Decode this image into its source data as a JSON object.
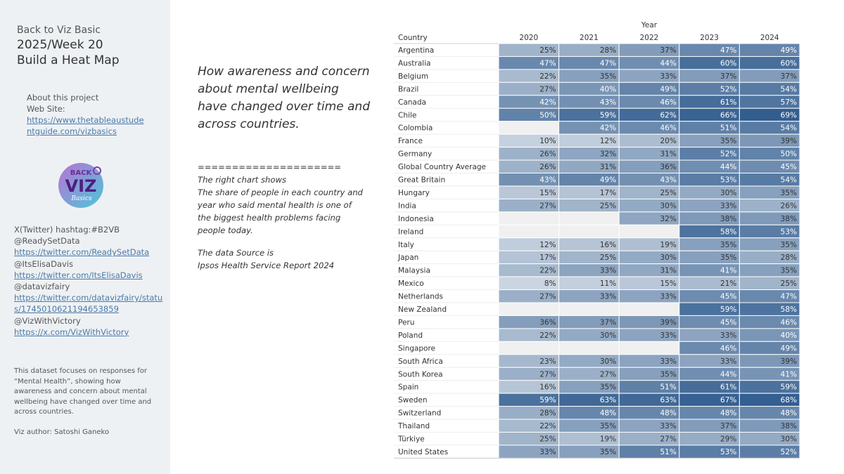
{
  "sidebar": {
    "header_line1": "Back to Viz Basic",
    "header_line2": "2025/Week 20",
    "header_line3": "Build a Heat Map",
    "about_label": "About this project",
    "website_label": "Web Site:",
    "website_url": "https://www.thetableaustudentguide.com/vizbasics",
    "logo_text_top": "BACK",
    "logo_text_main": "VIZ",
    "logo_text_bottom": "Basics",
    "hashtag": "X(Twitter) hashtag:#B2VB",
    "contacts": [
      {
        "handle": "@ReadySetData",
        "url": "https://twitter.com/ReadySetData"
      },
      {
        "handle": "@ItsElisaDavis",
        "url": "https://twitter.com/ItsElisaDavis"
      },
      {
        "handle": "@datavizfairy",
        "url": "https://twitter.com/datavizfairy/status/1745010621194653859"
      },
      {
        "handle": "@VizWithVictory",
        "url": "https://x.com/VizWithVictory"
      }
    ],
    "description": "This dataset focuses on responses for “Mental Health”, showing how awareness and concern about mental wellbeing have changed over time and across countries.",
    "author": "Viz author: Satoshi Ganeko"
  },
  "headline": "How awareness and concern about mental wellbeing have changed over time and across countries.",
  "notes": {
    "separator": "=====================",
    "line1": "The right chart shows",
    "line2": "The share of people in each country and year who said mental health is one of the biggest health problems facing people today.",
    "line3": "The data Source is",
    "line4": "Ipsos Health Service Report 2024"
  },
  "colors": {
    "heat_low": "#d2dbe5",
    "heat_high": "#2f5b8e",
    "empty_cell": "#f0f0f0",
    "sidebar_bg": "#eef1f4",
    "link": "#4a7aa8"
  },
  "chart_data": {
    "type": "heatmap",
    "column_group_label": "Year",
    "row_header": "Country",
    "columns": [
      "2020",
      "2021",
      "2022",
      "2023",
      "2024"
    ],
    "rows": [
      {
        "country": "Argentina",
        "values": [
          25,
          28,
          37,
          47,
          49
        ]
      },
      {
        "country": "Australia",
        "values": [
          47,
          47,
          44,
          60,
          60
        ]
      },
      {
        "country": "Belgium",
        "values": [
          22,
          35,
          33,
          37,
          37
        ]
      },
      {
        "country": "Brazil",
        "values": [
          27,
          40,
          49,
          52,
          54
        ]
      },
      {
        "country": "Canada",
        "values": [
          42,
          43,
          46,
          61,
          57
        ]
      },
      {
        "country": "Chile",
        "values": [
          50,
          59,
          62,
          66,
          69
        ]
      },
      {
        "country": "Colombia",
        "values": [
          null,
          42,
          46,
          51,
          54
        ]
      },
      {
        "country": "France",
        "values": [
          10,
          12,
          20,
          35,
          39
        ]
      },
      {
        "country": "Germany",
        "values": [
          26,
          32,
          31,
          52,
          50
        ]
      },
      {
        "country": "Global Country Average",
        "values": [
          26,
          31,
          36,
          44,
          45
        ]
      },
      {
        "country": "Great Britain",
        "values": [
          43,
          49,
          43,
          53,
          54
        ]
      },
      {
        "country": "Hungary",
        "values": [
          15,
          17,
          25,
          30,
          35
        ]
      },
      {
        "country": "India",
        "values": [
          27,
          25,
          30,
          33,
          26
        ]
      },
      {
        "country": "Indonesia",
        "values": [
          null,
          null,
          32,
          38,
          38
        ]
      },
      {
        "country": "Ireland",
        "values": [
          null,
          null,
          null,
          58,
          53
        ]
      },
      {
        "country": "Italy",
        "values": [
          12,
          16,
          19,
          35,
          35
        ]
      },
      {
        "country": "Japan",
        "values": [
          17,
          25,
          30,
          35,
          28
        ]
      },
      {
        "country": "Malaysia",
        "values": [
          22,
          33,
          31,
          41,
          35
        ]
      },
      {
        "country": "Mexico",
        "values": [
          8,
          11,
          15,
          21,
          25
        ]
      },
      {
        "country": "Netherlands",
        "values": [
          27,
          33,
          33,
          45,
          47
        ]
      },
      {
        "country": "New Zealand",
        "values": [
          null,
          null,
          null,
          59,
          58
        ]
      },
      {
        "country": "Peru",
        "values": [
          36,
          37,
          39,
          45,
          46
        ]
      },
      {
        "country": "Poland",
        "values": [
          22,
          30,
          33,
          33,
          40
        ]
      },
      {
        "country": "Singapore",
        "values": [
          null,
          null,
          null,
          46,
          49
        ]
      },
      {
        "country": "South Africa",
        "values": [
          23,
          30,
          33,
          33,
          39
        ]
      },
      {
        "country": "South Korea",
        "values": [
          27,
          27,
          35,
          44,
          41
        ]
      },
      {
        "country": "Spain",
        "values": [
          16,
          35,
          51,
          61,
          59
        ]
      },
      {
        "country": "Sweden",
        "values": [
          59,
          63,
          63,
          67,
          68
        ]
      },
      {
        "country": "Switzerland",
        "values": [
          28,
          48,
          48,
          48,
          48
        ]
      },
      {
        "country": "Thailand",
        "values": [
          22,
          35,
          33,
          37,
          38
        ]
      },
      {
        "country": "Türkiye",
        "values": [
          25,
          19,
          27,
          29,
          30
        ]
      },
      {
        "country": "United States",
        "values": [
          33,
          35,
          51,
          53,
          52
        ]
      }
    ],
    "value_unit": "%"
  }
}
